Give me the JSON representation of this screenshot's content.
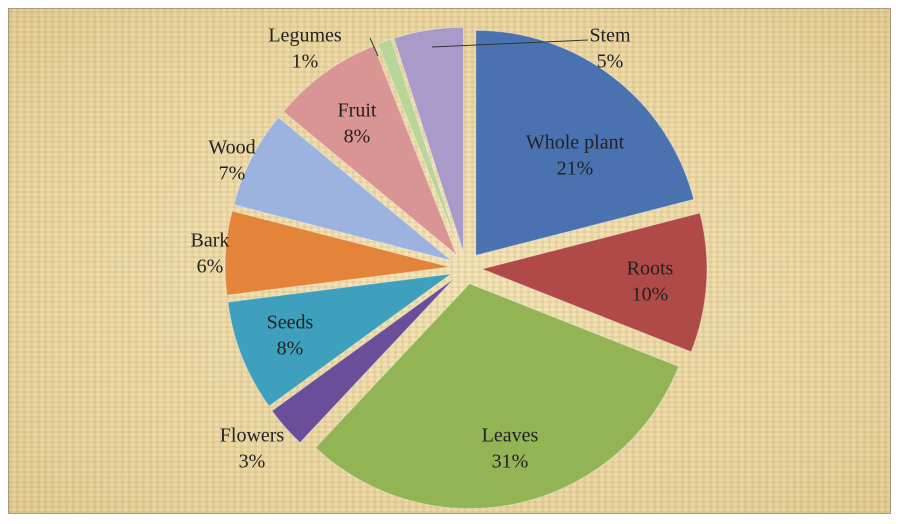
{
  "chart_data": {
    "type": "pie",
    "categories": [
      "Whole plant",
      "Roots",
      "Leaves",
      "Flowers",
      "Seeds",
      "Bark",
      "Wood",
      "Fruit",
      "Legumes",
      "Stem"
    ],
    "values": [
      21,
      10,
      31,
      3,
      8,
      6,
      7,
      8,
      1,
      5
    ],
    "value_labels": [
      "21%",
      "10%",
      "31%",
      "3%",
      "8%",
      "6%",
      "7%",
      "8%",
      "1%",
      "5%"
    ],
    "colors": [
      "#4a72b0",
      "#b04a48",
      "#93b454",
      "#6b4e9a",
      "#3fa0bd",
      "#e3843a",
      "#9db3df",
      "#d99593",
      "#b9d59a",
      "#a99bc9"
    ]
  }
}
